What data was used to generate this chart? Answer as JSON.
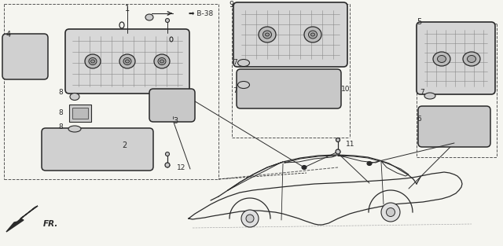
{
  "bg_color": "#f5f5f0",
  "line_color": "#2a2a2a",
  "figsize": [
    6.4,
    3.13
  ],
  "dpi": 100,
  "labels": {
    "B38": "➡ B-38",
    "FR": "FR.",
    "parts": [
      "1",
      "2",
      "3",
      "4",
      "5",
      "6",
      "7",
      "7",
      "7",
      "8",
      "8",
      "8",
      "9",
      "10",
      "11",
      "12"
    ]
  }
}
